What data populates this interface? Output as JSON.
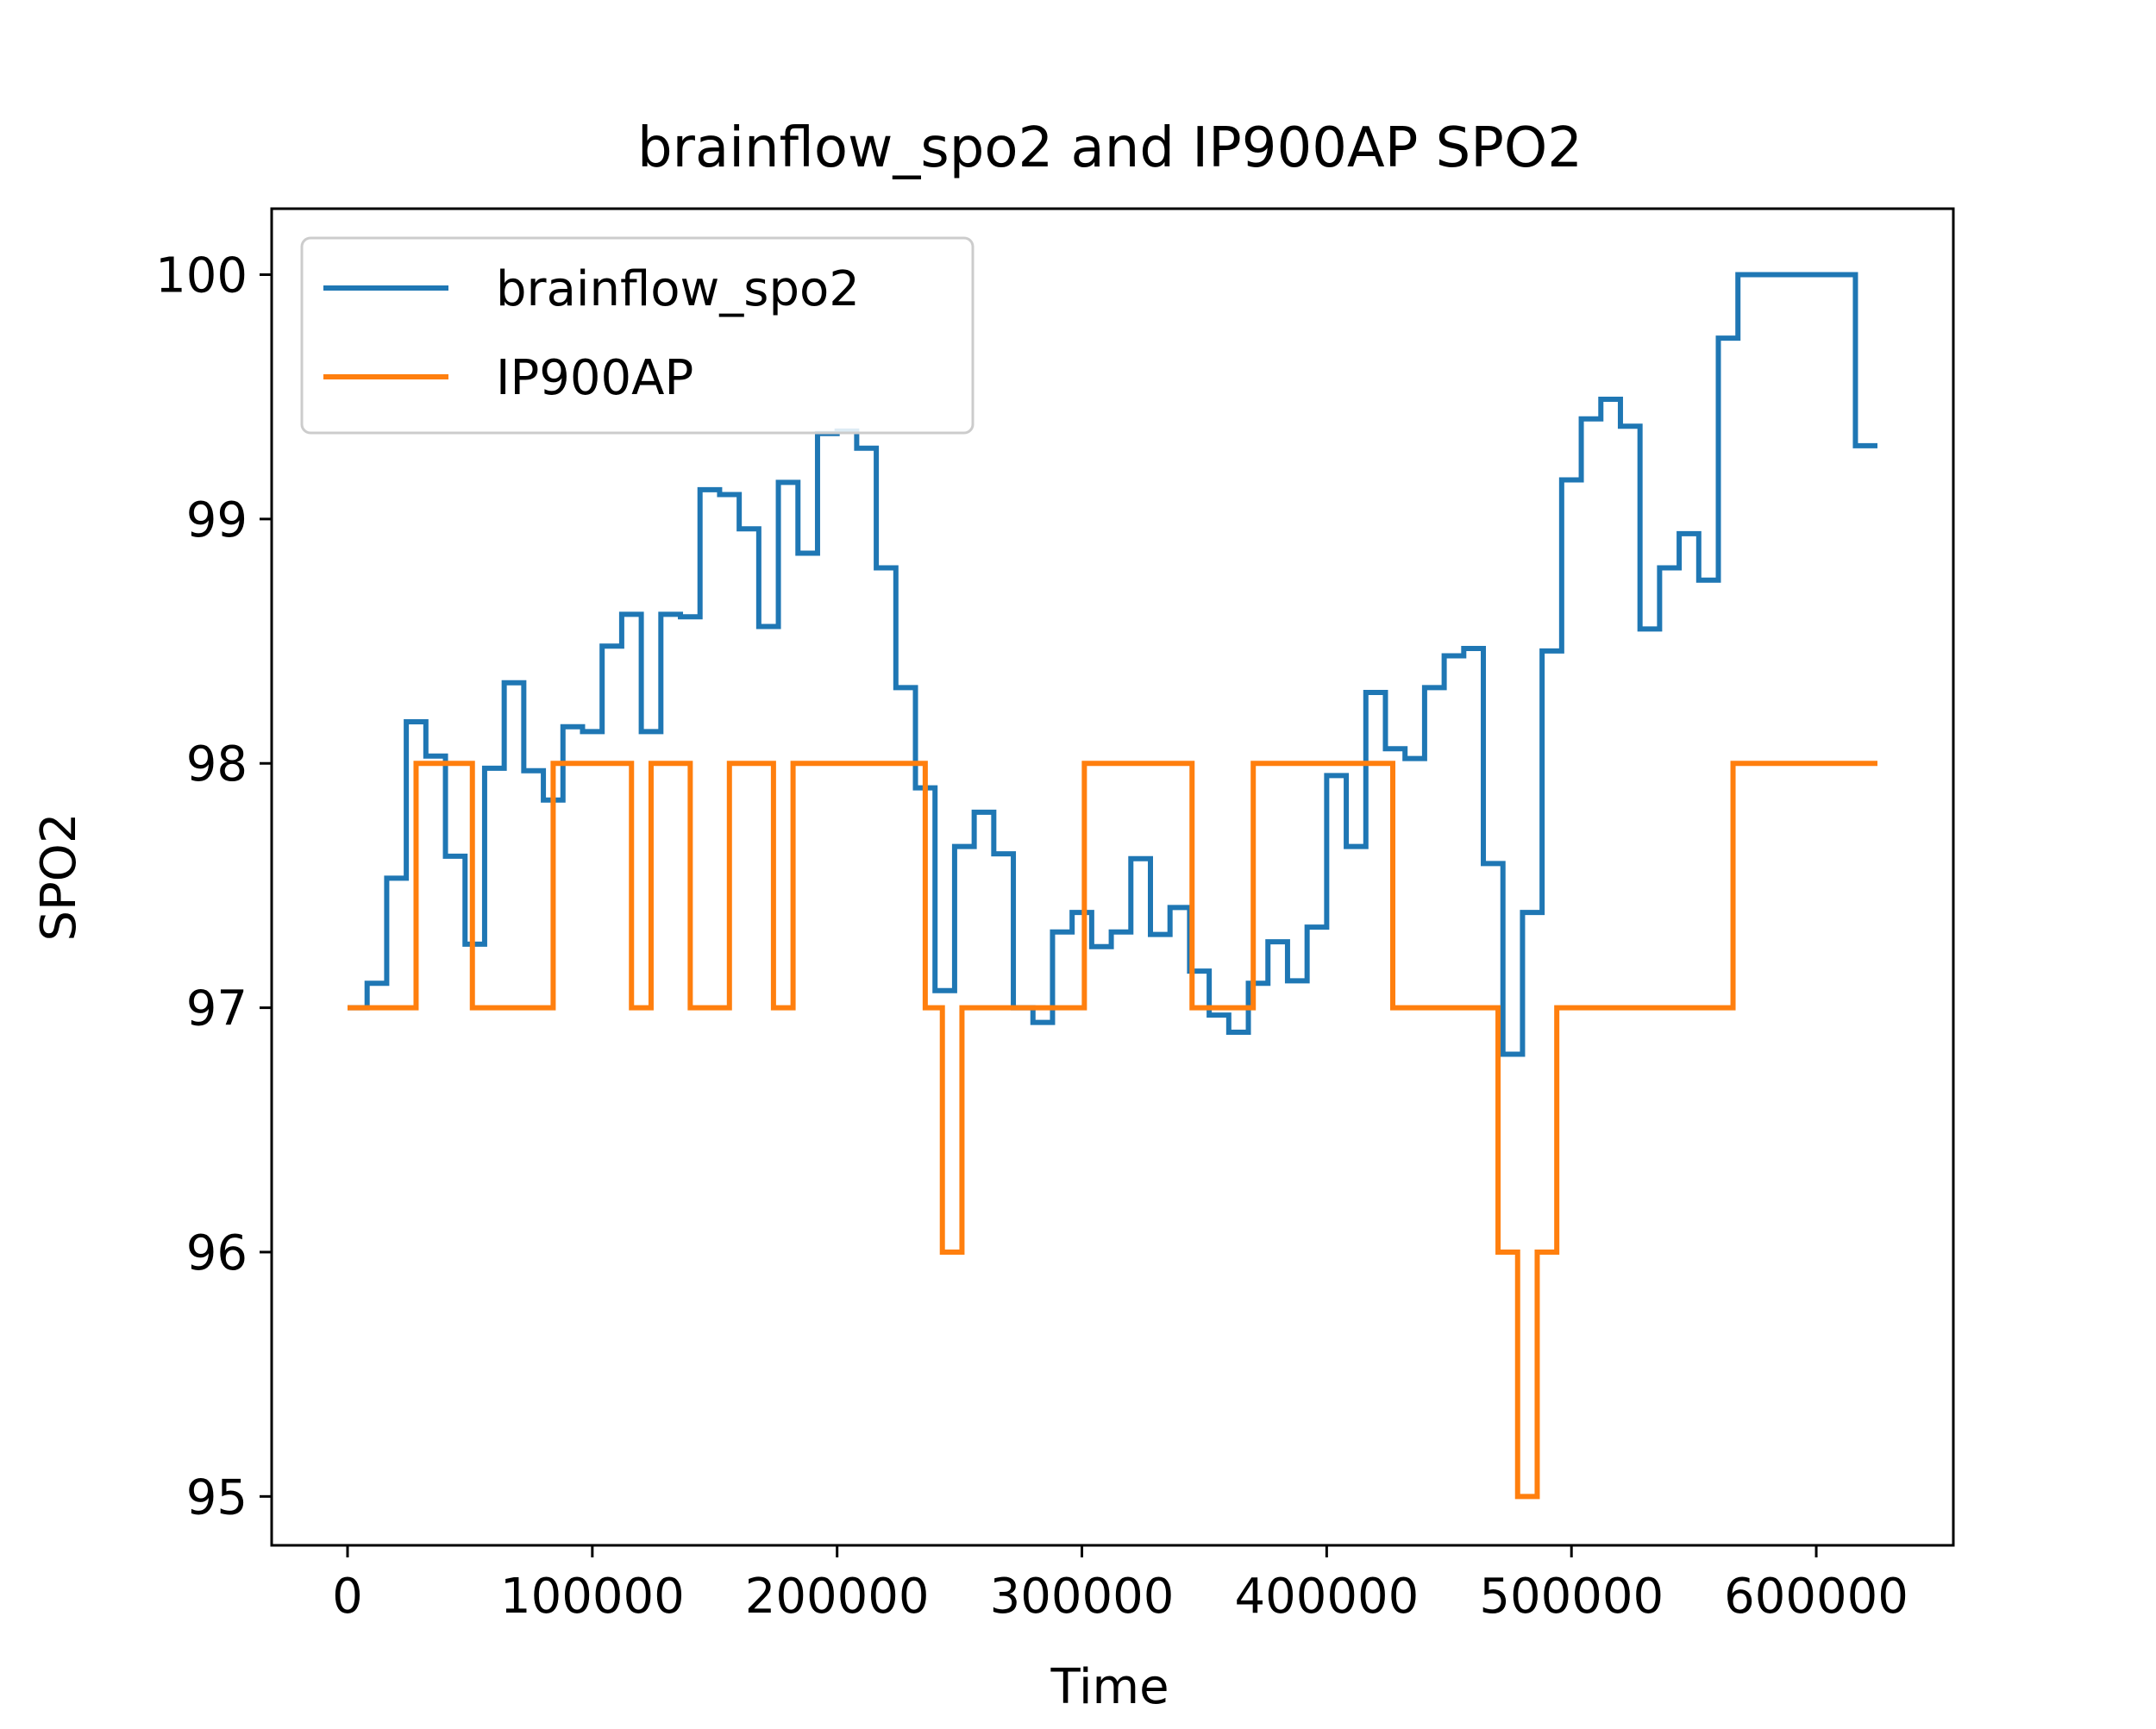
{
  "chart_data": {
    "type": "line",
    "step": "post",
    "title": "brainflow_spo2 and IP900AP SPO2",
    "xlabel": "Time",
    "ylabel": "SPO2",
    "xlim": [
      -31000,
      656000
    ],
    "ylim": [
      94.8,
      100.27
    ],
    "xticks": [
      0,
      100000,
      200000,
      300000,
      400000,
      500000,
      600000
    ],
    "xtick_labels": [
      "0",
      "100000",
      "200000",
      "300000",
      "400000",
      "500000",
      "600000"
    ],
    "yticks": [
      95,
      96,
      97,
      98,
      99,
      100
    ],
    "ytick_labels": [
      "95",
      "96",
      "97",
      "98",
      "99",
      "100"
    ],
    "grid": false,
    "legend_position": "upper-left",
    "series": [
      {
        "name": "brainflow_spo2",
        "color": "#1f77b4",
        "points": [
          [
            0,
            97.0
          ],
          [
            8000,
            97.1
          ],
          [
            16000,
            97.53
          ],
          [
            24000,
            98.17
          ],
          [
            32000,
            98.03
          ],
          [
            40000,
            97.62
          ],
          [
            48000,
            97.26
          ],
          [
            56000,
            97.98
          ],
          [
            64000,
            98.33
          ],
          [
            72000,
            97.97
          ],
          [
            80000,
            97.85
          ],
          [
            88000,
            98.15
          ],
          [
            96000,
            98.13
          ],
          [
            104000,
            98.48
          ],
          [
            112000,
            98.61
          ],
          [
            120000,
            98.13
          ],
          [
            128000,
            98.61
          ],
          [
            136000,
            98.6
          ],
          [
            144000,
            99.12
          ],
          [
            152000,
            99.1
          ],
          [
            160000,
            98.96
          ],
          [
            168000,
            98.56
          ],
          [
            176000,
            99.15
          ],
          [
            184000,
            98.86
          ],
          [
            192000,
            99.35
          ],
          [
            200000,
            99.36
          ],
          [
            208000,
            99.29
          ],
          [
            216000,
            98.8
          ],
          [
            224000,
            98.31
          ],
          [
            232000,
            97.9
          ],
          [
            240000,
            97.07
          ],
          [
            248000,
            97.66
          ],
          [
            256000,
            97.8
          ],
          [
            264000,
            97.63
          ],
          [
            272000,
            97.0
          ],
          [
            280000,
            96.94
          ],
          [
            288000,
            97.31
          ],
          [
            296000,
            97.39
          ],
          [
            304000,
            97.25
          ],
          [
            312000,
            97.31
          ],
          [
            320000,
            97.61
          ],
          [
            328000,
            97.3
          ],
          [
            336000,
            97.41
          ],
          [
            344000,
            97.15
          ],
          [
            352000,
            96.97
          ],
          [
            360000,
            96.9
          ],
          [
            368000,
            97.1
          ],
          [
            376000,
            97.27
          ],
          [
            384000,
            97.11
          ],
          [
            392000,
            97.33
          ],
          [
            400000,
            97.95
          ],
          [
            408000,
            97.66
          ],
          [
            416000,
            98.29
          ],
          [
            424000,
            98.06
          ],
          [
            432000,
            98.02
          ],
          [
            440000,
            98.31
          ],
          [
            448000,
            98.44
          ],
          [
            456000,
            98.47
          ],
          [
            464000,
            97.59
          ],
          [
            472000,
            96.81
          ],
          [
            480000,
            97.39
          ],
          [
            488000,
            98.46
          ],
          [
            496000,
            99.16
          ],
          [
            504000,
            99.41
          ],
          [
            512000,
            99.49
          ],
          [
            520000,
            99.38
          ],
          [
            528000,
            98.55
          ],
          [
            536000,
            98.8
          ],
          [
            544000,
            98.94
          ],
          [
            552000,
            98.75
          ],
          [
            560000,
            99.74
          ],
          [
            568000,
            100.0
          ],
          [
            616000,
            99.3
          ],
          [
            625000,
            99.3
          ]
        ]
      },
      {
        "name": "IP900AP",
        "color": "#ff7f0e",
        "points": [
          [
            0,
            97.0
          ],
          [
            28000,
            98.0
          ],
          [
            51000,
            97.0
          ],
          [
            84000,
            98.0
          ],
          [
            116000,
            97.0
          ],
          [
            124000,
            98.0
          ],
          [
            140000,
            97.0
          ],
          [
            156000,
            98.0
          ],
          [
            174000,
            97.0
          ],
          [
            182000,
            98.0
          ],
          [
            236000,
            97.0
          ],
          [
            243000,
            96.0
          ],
          [
            251000,
            97.0
          ],
          [
            301000,
            98.0
          ],
          [
            345000,
            97.0
          ],
          [
            370000,
            98.0
          ],
          [
            427000,
            97.0
          ],
          [
            470000,
            96.0
          ],
          [
            478000,
            95.0
          ],
          [
            486000,
            96.0
          ],
          [
            494000,
            97.0
          ],
          [
            566000,
            98.0
          ],
          [
            625000,
            98.0
          ]
        ]
      }
    ]
  }
}
